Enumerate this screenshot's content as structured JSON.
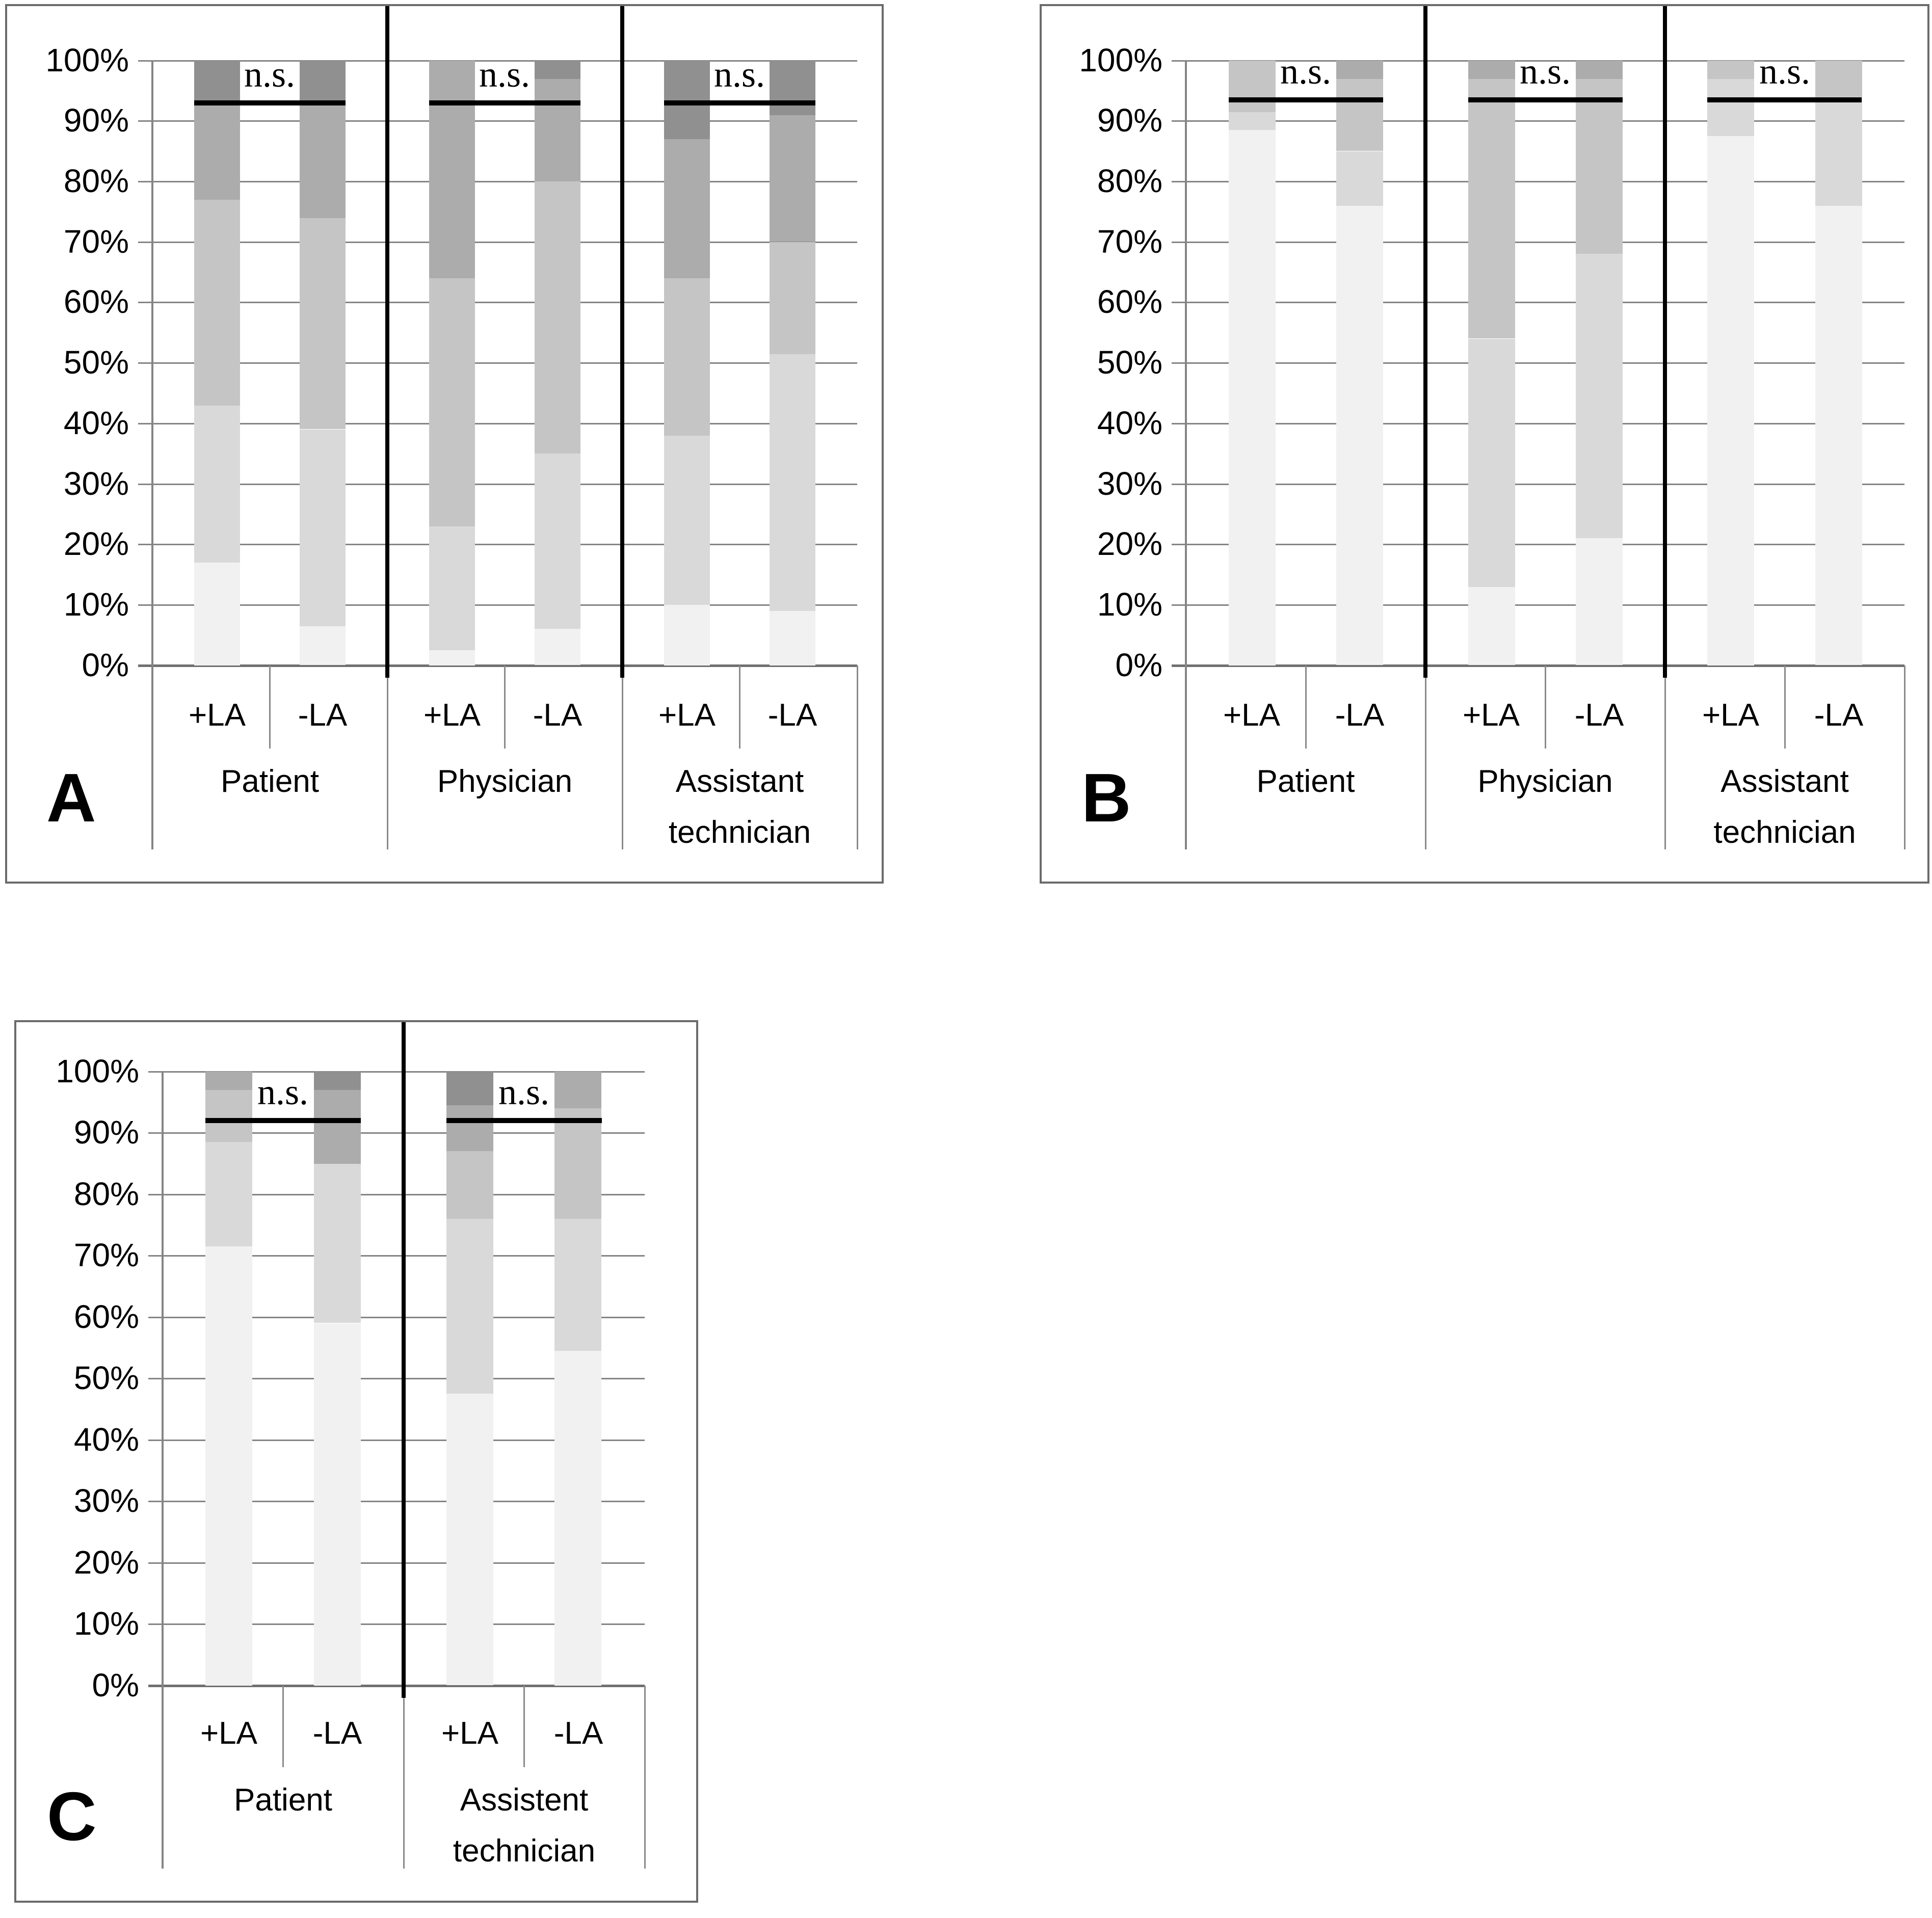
{
  "chart_data": {
    "type": "bar",
    "stacked": true,
    "normalized_to_100_percent": true,
    "legend": "none",
    "y_axis": {
      "ticks": [
        "100%",
        "90%",
        "80%",
        "70%",
        "60%",
        "50%",
        "40%",
        "30%",
        "20%",
        "10%",
        "0%"
      ],
      "range": [
        0,
        100
      ],
      "gridlines": true
    },
    "segment_colors_bottom_to_top": [
      "#f1f1f1",
      "#d9d9d9",
      "#c5c5c5",
      "#acacac",
      "#909090"
    ],
    "panels": [
      {
        "letter": "A",
        "ns_y_percent": 93,
        "groups": [
          {
            "label_lines": [
              "Patient"
            ],
            "ns": "n.s.",
            "bars": [
              {
                "label": "+LA",
                "segments_bottom_to_top": [
                  17,
                  26,
                  34,
                  16,
                  7
                ]
              },
              {
                "label": "-LA",
                "segments_bottom_to_top": [
                  6.5,
                  32.5,
                  35,
                  19,
                  7
                ]
              }
            ]
          },
          {
            "label_lines": [
              "Physician"
            ],
            "ns": "n.s.",
            "bars": [
              {
                "label": "+LA",
                "segments_bottom_to_top": [
                  2.5,
                  20.5,
                  41,
                  36,
                  0
                ]
              },
              {
                "label": "-LA",
                "segments_bottom_to_top": [
                  6,
                  29,
                  45,
                  17,
                  3
                ]
              }
            ]
          },
          {
            "label_lines": [
              "Assistant",
              "technician"
            ],
            "ns": "n.s.",
            "bars": [
              {
                "label": "+LA",
                "segments_bottom_to_top": [
                  10,
                  28,
                  26,
                  23,
                  13
                ]
              },
              {
                "label": "-LA",
                "segments_bottom_to_top": [
                  9,
                  42.5,
                  18.5,
                  21,
                  9
                ]
              }
            ]
          }
        ]
      },
      {
        "letter": "B",
        "ns_y_percent": 93.5,
        "groups": [
          {
            "label_lines": [
              "Patient"
            ],
            "ns": "n.s.",
            "bars": [
              {
                "label": "+LA",
                "segments_bottom_to_top": [
                  88.5,
                  3,
                  8.5,
                  0,
                  0
                ]
              },
              {
                "label": "-LA",
                "segments_bottom_to_top": [
                  76,
                  9,
                  12,
                  3,
                  0
                ]
              }
            ]
          },
          {
            "label_lines": [
              "Physician"
            ],
            "ns": "n.s.",
            "bars": [
              {
                "label": "+LA",
                "segments_bottom_to_top": [
                  13,
                  41,
                  43,
                  3,
                  0
                ]
              },
              {
                "label": "-LA",
                "segments_bottom_to_top": [
                  21,
                  47,
                  29,
                  3,
                  0
                ]
              }
            ]
          },
          {
            "label_lines": [
              "Assistant",
              "technician"
            ],
            "ns": "n.s.",
            "bars": [
              {
                "label": "+LA",
                "segments_bottom_to_top": [
                  87.5,
                  9.5,
                  3,
                  0,
                  0
                ]
              },
              {
                "label": "-LA",
                "segments_bottom_to_top": [
                  76,
                  18,
                  6,
                  0,
                  0
                ]
              }
            ]
          }
        ]
      },
      {
        "letter": "C",
        "ns_y_percent": 92,
        "groups": [
          {
            "label_lines": [
              "Patient"
            ],
            "ns": "n.s.",
            "bars": [
              {
                "label": "+LA",
                "segments_bottom_to_top": [
                  71.5,
                  17,
                  8.5,
                  3,
                  0
                ]
              },
              {
                "label": "-LA",
                "segments_bottom_to_top": [
                  59,
                  26,
                  0,
                  12,
                  3
                ]
              }
            ]
          },
          {
            "label_lines": [
              "Assistent",
              "technician"
            ],
            "ns": "n.s.",
            "bars": [
              {
                "label": "+LA",
                "segments_bottom_to_top": [
                  47.5,
                  28.5,
                  11,
                  7.5,
                  5.5
                ]
              },
              {
                "label": "-LA",
                "segments_bottom_to_top": [
                  54.5,
                  21.5,
                  18,
                  6,
                  0
                ]
              }
            ]
          }
        ]
      }
    ]
  }
}
